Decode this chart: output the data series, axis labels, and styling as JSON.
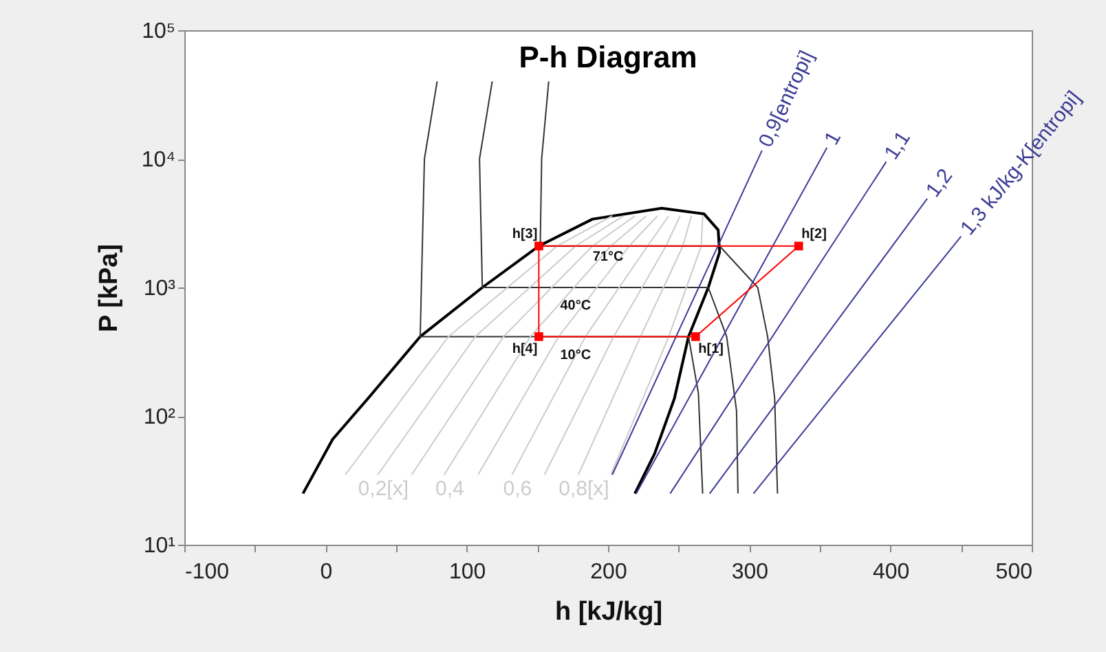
{
  "chart_data": {
    "type": "line",
    "title": "P-h Diagram",
    "xlabel": "h [kJ/kg]",
    "ylabel": "P [kPa]",
    "log": "y",
    "grid": false,
    "xlim": [
      -100,
      500
    ],
    "xticks": [
      -100,
      {
        "value": -50,
        "label": null
      },
      0,
      {
        "value": 50,
        "label": null
      },
      100,
      {
        "value": 150,
        "label": null
      },
      200,
      {
        "value": 250,
        "label": null
      },
      300,
      {
        "value": 350,
        "label": null
      },
      400,
      {
        "value": 450,
        "label": null
      },
      500
    ],
    "ylim": [
      10,
      100000
    ],
    "yticks": [
      {
        "value": 10,
        "label": "10¹"
      },
      {
        "value": 100,
        "label": "10²"
      },
      {
        "value": 1000,
        "label": "10³"
      },
      {
        "value": 10000,
        "label": "10⁴"
      },
      {
        "value": 100000,
        "label": "10⁵"
      }
    ],
    "series": [
      {
        "color": "#000000",
        "x": [
          -16,
          5,
          30,
          67,
          111,
          151,
          189,
          238,
          268,
          278,
          279,
          271,
          257,
          247,
          233,
          219
        ],
        "values": [
          25,
          66,
          137,
          415,
          1000,
          2100,
          3400,
          4130,
          3730,
          2800,
          1880,
          1000,
          415,
          137,
          51,
          25
        ]
      },
      {
        "color": "#333333",
        "x": [
          79,
          70,
          67,
          257,
          264,
          267
        ],
        "values": [
          40000,
          10000,
          415,
          415,
          150,
          25
        ]
      },
      {
        "color": "#333333",
        "x": [
          118,
          109,
          111,
          271,
          284,
          291,
          292
        ],
        "values": [
          40000,
          10000,
          1000,
          1000,
          415,
          110,
          25
        ]
      },
      {
        "color": "#333333",
        "x": [
          158,
          153,
          152,
          279,
          306,
          313,
          318,
          320
        ],
        "values": [
          40000,
          10000,
          2100,
          2100,
          1000,
          415,
          137,
          25
        ]
      },
      {
        "color": "#cccccc",
        "x": [
          203,
          164,
          87,
          14
        ],
        "values": [
          3600,
          2100,
          415,
          35
        ]
      },
      {
        "name": "0,2[x]",
        "color": "#cccccc",
        "x": [
          211,
          177,
          106,
          37
        ],
        "values": [
          3600,
          2100,
          415,
          35
        ]
      },
      {
        "color": "#cccccc",
        "x": [
          219,
          189,
          126,
          61
        ],
        "values": [
          3600,
          2100,
          415,
          35
        ]
      },
      {
        "name": "0,4",
        "color": "#cccccc",
        "x": [
          227,
          202,
          145,
          84
        ],
        "values": [
          3600,
          2100,
          415,
          35
        ]
      },
      {
        "color": "#cccccc",
        "x": [
          235,
          215,
          165,
          108
        ],
        "values": [
          3600,
          2100,
          415,
          35
        ]
      },
      {
        "name": "0,6",
        "color": "#cccccc",
        "x": [
          243,
          228,
          184,
          132
        ],
        "values": [
          3600,
          2100,
          415,
          35
        ]
      },
      {
        "color": "#cccccc",
        "x": [
          251,
          241,
          204,
          155
        ],
        "values": [
          3600,
          2100,
          415,
          35
        ]
      },
      {
        "name": "0,8[x]",
        "color": "#cccccc",
        "x": [
          259,
          253,
          223,
          179
        ],
        "values": [
          3600,
          2100,
          415,
          35
        ]
      },
      {
        "color": "#cccccc",
        "x": [
          267,
          266,
          243,
          202
        ],
        "values": [
          3600,
          2100,
          415,
          35
        ]
      },
      {
        "name": "0,9[entropi]",
        "color": "#3c3c96",
        "x": [
          203,
          309
        ],
        "values": [
          35,
          11600
        ]
      },
      {
        "name": "1",
        "color": "#3c3c96",
        "x": [
          220,
          355
        ],
        "values": [
          25,
          12200
        ]
      },
      {
        "name": "1,1",
        "color": "#3c3c96",
        "x": [
          244,
          397
        ],
        "values": [
          25,
          9500
        ]
      },
      {
        "name": "1,2",
        "color": "#3c3c96",
        "x": [
          272,
          426
        ],
        "values": [
          25,
          4900
        ]
      },
      {
        "name": "1,3 kJ/kg-K[entropi]",
        "color": "#3c3c96",
        "x": [
          303,
          450
        ],
        "values": [
          25,
          2500
        ]
      },
      {
        "color": "#ff0000",
        "x": [
          262,
          335,
          151
        ],
        "values": [
          415,
          2100,
          2100
        ]
      },
      {
        "color": "#ff0000",
        "x": [
          151,
          151,
          262
        ],
        "values": [
          2100,
          415,
          415
        ]
      },
      {
        "type": "scatter",
        "color": "#ff0000",
        "marker": "square",
        "x": [
          262,
          335,
          151,
          151
        ],
        "values": [
          415,
          2100,
          2100,
          415
        ]
      }
    ],
    "annotations": [
      {
        "text": "71°C",
        "x": 200,
        "y": 1740
      },
      {
        "text": "40°C",
        "x": 177,
        "y": 725
      },
      {
        "text": "10°C",
        "x": 177,
        "y": 300
      },
      {
        "text": "h[3]",
        "x": 151,
        "y": 2100
      },
      {
        "text": "h[2]",
        "x": 335,
        "y": 2100
      },
      {
        "text": "h[4]",
        "x": 151,
        "y": 415
      },
      {
        "text": "h[1]",
        "x": 262,
        "y": 415
      }
    ]
  }
}
